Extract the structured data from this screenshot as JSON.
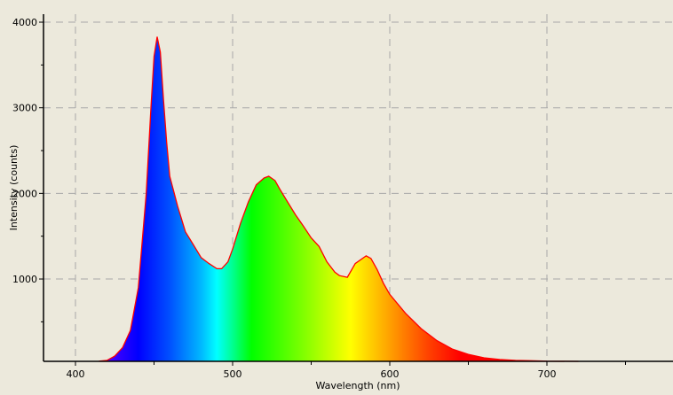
{
  "chart_data": {
    "type": "area",
    "title": "",
    "xlabel": "Wavelength (nm)",
    "ylabel": "Intensity (counts)",
    "xlim": [
      380,
      780
    ],
    "ylim": [
      38,
      4090
    ],
    "xticks": [
      400,
      500,
      600,
      700
    ],
    "xtick_labels": [
      "400",
      "500",
      "600",
      "700"
    ],
    "yticks": [
      1000,
      2000,
      3000,
      4000
    ],
    "ytick_labels": [
      "1000",
      "2000",
      "3000",
      "4000"
    ],
    "grid": true,
    "legend": "none",
    "colors": {
      "background": "#ece9dc",
      "outline": "#ff0000",
      "grid": "#a8a8a8"
    },
    "fill": "visible-spectrum gradient by wavelength",
    "series": [
      {
        "x": [
          415,
          420,
          425,
          430,
          435,
          440,
          445,
          448,
          450,
          452,
          454,
          456,
          458,
          460,
          465,
          470,
          475,
          480,
          485,
          490,
          493,
          497,
          500,
          505,
          510,
          515,
          520,
          523,
          527,
          530,
          535,
          540,
          545,
          550,
          555,
          560,
          565,
          568,
          573,
          578,
          585,
          588,
          592,
          596,
          600,
          610,
          620,
          630,
          640,
          650,
          660,
          670,
          680,
          690,
          700,
          720
        ],
        "y": [
          40,
          50,
          100,
          200,
          400,
          900,
          2000,
          3000,
          3600,
          3830,
          3650,
          3100,
          2600,
          2200,
          1850,
          1550,
          1400,
          1250,
          1180,
          1120,
          1120,
          1200,
          1350,
          1650,
          1900,
          2100,
          2180,
          2200,
          2150,
          2050,
          1900,
          1750,
          1620,
          1480,
          1380,
          1200,
          1080,
          1040,
          1020,
          1180,
          1270,
          1240,
          1110,
          950,
          820,
          600,
          420,
          280,
          180,
          120,
          80,
          60,
          50,
          45,
          40,
          38
        ]
      }
    ]
  }
}
